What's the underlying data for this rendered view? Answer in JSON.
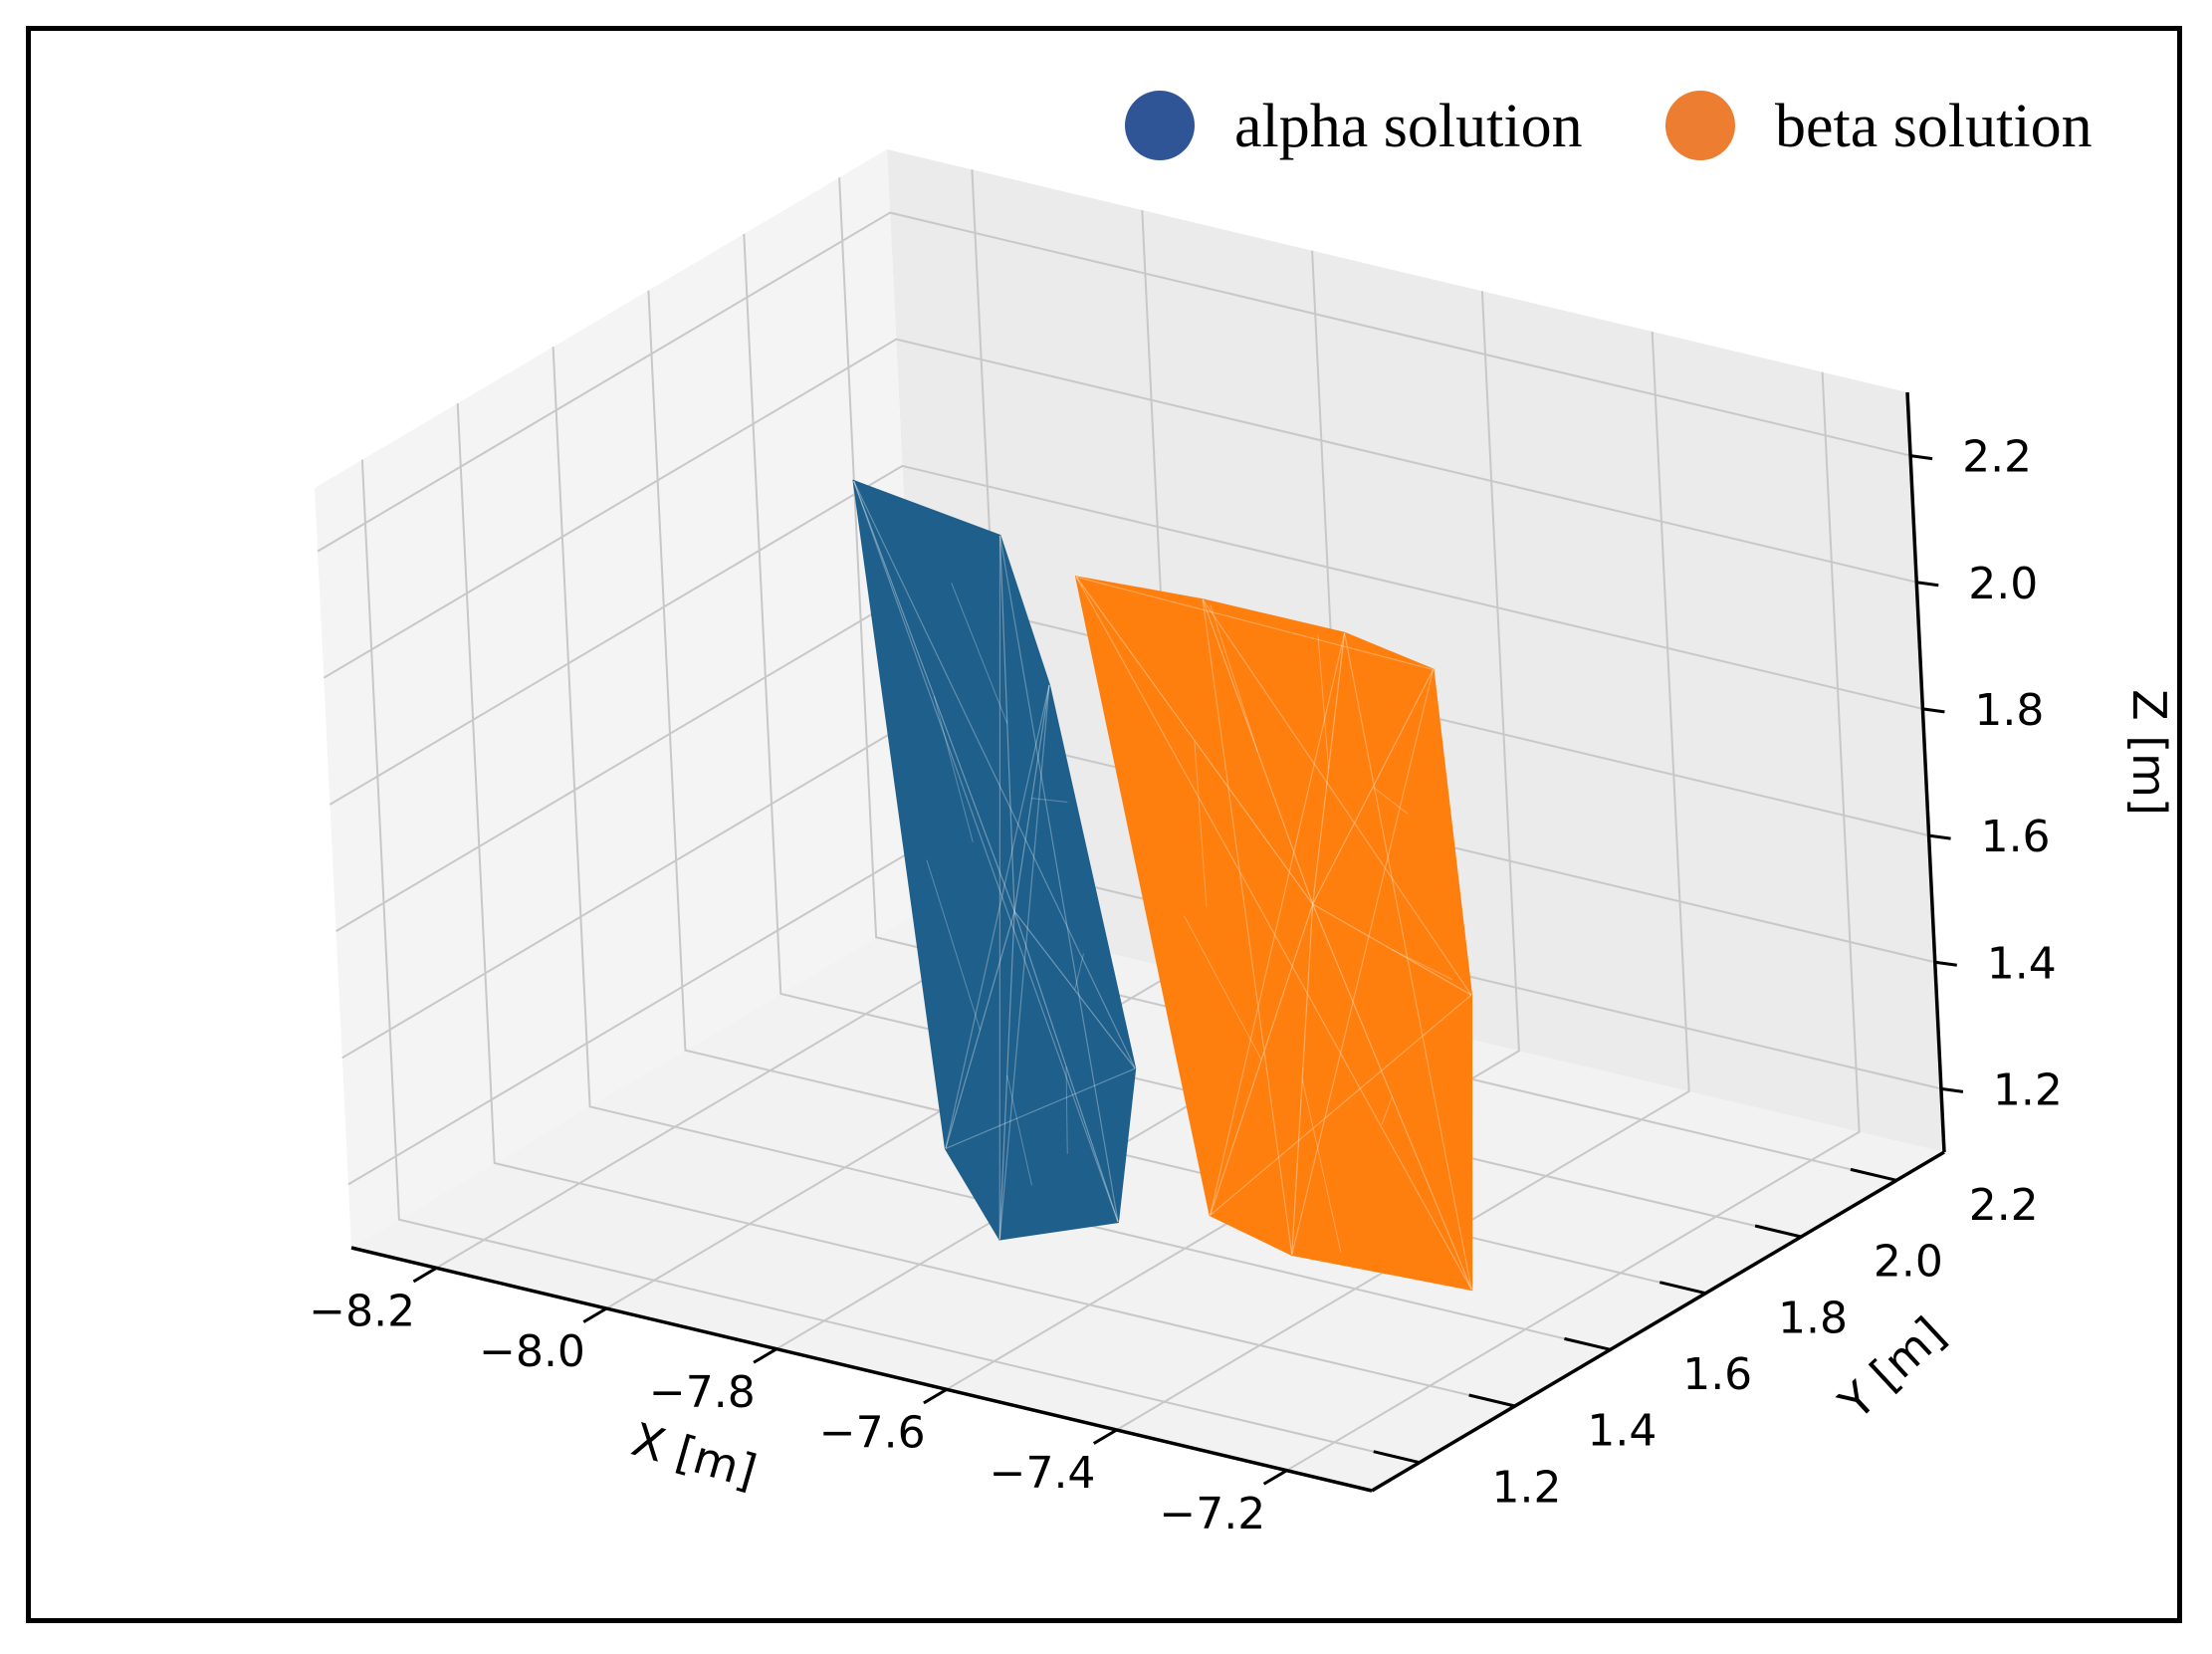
{
  "chart_data": {
    "type": "3d-surface",
    "title": "",
    "legend": {
      "placement": "top-right",
      "entries": [
        {
          "name": "alpha solution",
          "color": "#2f5597"
        },
        {
          "name": "beta solution",
          "color": "#ed7d31"
        }
      ]
    },
    "surface_colors": {
      "alpha": "#1f5f8b",
      "beta": "#ff7f0e"
    },
    "grid": true,
    "axes": {
      "x": {
        "label": "X [m]",
        "range": [
          -8.3,
          -7.1
        ],
        "ticks": [
          -8.2,
          -8.0,
          -7.8,
          -7.6,
          -7.4,
          -7.2
        ],
        "tick_labels": [
          "−8.2",
          "−8.0",
          "−7.8",
          "−7.6",
          "−7.4",
          "−7.2"
        ]
      },
      "y": {
        "label": "Y [m]",
        "range": [
          1.1,
          2.3
        ],
        "ticks": [
          1.2,
          1.4,
          1.6,
          1.8,
          2.0,
          2.2
        ],
        "tick_labels": [
          "1.2",
          "1.4",
          "1.6",
          "1.8",
          "2.0",
          "2.2"
        ]
      },
      "z": {
        "label": "Z [m]",
        "range": [
          1.1,
          2.3
        ],
        "ticks": [
          1.2,
          1.4,
          1.6,
          1.8,
          2.0,
          2.2
        ],
        "tick_labels": [
          "1.2",
          "1.4",
          "1.6",
          "1.8",
          "2.0",
          "2.2"
        ]
      }
    },
    "series": [
      {
        "name": "alpha solution",
        "type": "surface",
        "outline": [
          [
            -7.95,
            1.6,
            2.2
          ],
          [
            -7.75,
            1.55,
            2.2
          ],
          [
            -7.7,
            1.55,
            1.98
          ],
          [
            -7.62,
            1.55,
            1.4
          ],
          [
            -7.62,
            1.5,
            1.18
          ],
          [
            -7.75,
            1.48,
            1.12
          ],
          [
            -7.85,
            1.55,
            1.2
          ]
        ]
      },
      {
        "name": "beta solution",
        "type": "surface",
        "outline": [
          [
            -7.72,
            1.65,
            2.1
          ],
          [
            -7.6,
            1.7,
            2.08
          ],
          [
            -7.48,
            1.78,
            2.03
          ],
          [
            -7.4,
            1.82,
            1.98
          ],
          [
            -7.35,
            1.78,
            1.5
          ],
          [
            -7.32,
            1.7,
            1.08
          ],
          [
            -7.52,
            1.68,
            1.08
          ],
          [
            -7.58,
            1.62,
            1.15
          ]
        ]
      }
    ]
  }
}
